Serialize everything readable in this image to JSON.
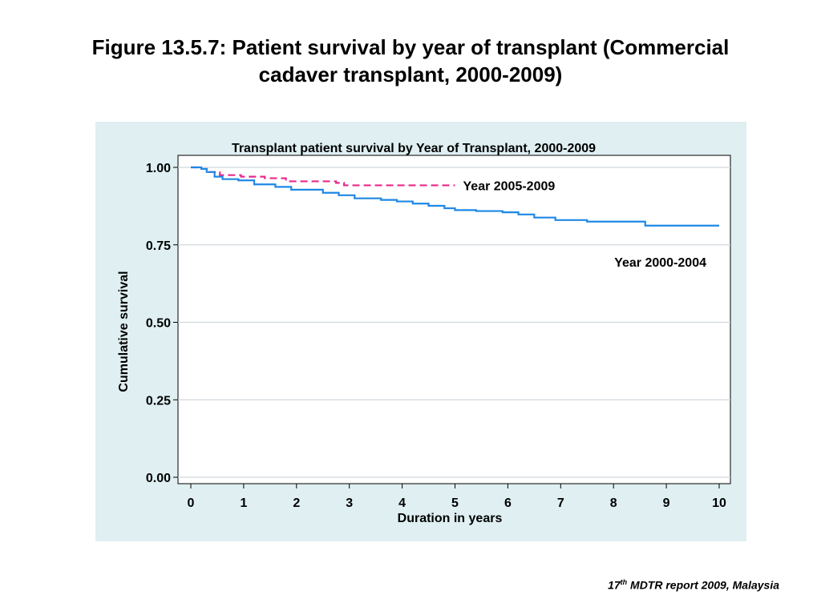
{
  "slide": {
    "title_line1": "Figure 13.5.7: Patient survival by year of transplant (Commercial",
    "title_line2": "cadaver transplant, 2000-2009)",
    "footer_num": "17",
    "footer_sup": "th",
    "footer_text": " MDTR report 2009, Malaysia"
  },
  "chart_data": {
    "type": "line",
    "title": "Transplant patient survival by Year of Transplant, 2000-2009",
    "xlabel": "Duration in years",
    "ylabel": "Cumulative survival",
    "xlim": [
      0,
      10
    ],
    "ylim": [
      0,
      1
    ],
    "x_ticks": [
      "0",
      "1",
      "2",
      "3",
      "4",
      "5",
      "6",
      "7",
      "8",
      "9",
      "10"
    ],
    "y_ticks": [
      "0.00",
      "0.25",
      "0.50",
      "0.75",
      "1.00"
    ],
    "grid": true,
    "series": [
      {
        "name": "Year 2005-2009",
        "color": "#e8288a",
        "dash": true,
        "step": true,
        "x": [
          0,
          0.2,
          0.35,
          0.55,
          0.95,
          1.4,
          1.8,
          2.75,
          2.9,
          3.6,
          5.0
        ],
        "y": [
          1.0,
          0.995,
          0.985,
          0.975,
          0.97,
          0.965,
          0.955,
          0.95,
          0.942,
          0.942,
          0.942
        ]
      },
      {
        "name": "Year 2000-2004",
        "color": "#1e88e5",
        "dash": false,
        "step": true,
        "x": [
          0,
          0.2,
          0.3,
          0.45,
          0.6,
          0.9,
          1.2,
          1.6,
          1.9,
          2.5,
          2.8,
          3.1,
          3.6,
          3.9,
          4.2,
          4.5,
          4.8,
          5.0,
          5.4,
          5.9,
          6.2,
          6.5,
          6.9,
          7.5,
          8.0,
          8.6,
          9.0,
          9.6,
          10.0
        ],
        "y": [
          1.0,
          0.995,
          0.985,
          0.97,
          0.962,
          0.958,
          0.945,
          0.937,
          0.928,
          0.918,
          0.91,
          0.9,
          0.895,
          0.89,
          0.883,
          0.876,
          0.868,
          0.862,
          0.859,
          0.855,
          0.848,
          0.838,
          0.83,
          0.825,
          0.825,
          0.812,
          0.812,
          0.812,
          0.812
        ]
      }
    ]
  }
}
